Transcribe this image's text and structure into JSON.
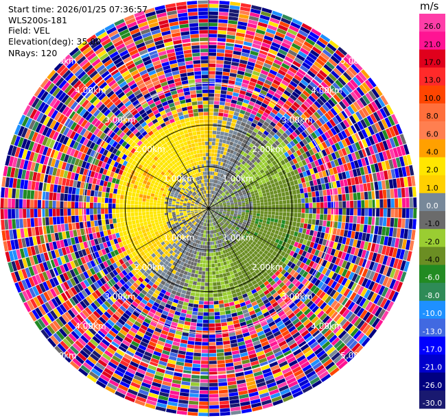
{
  "info": {
    "start_time": "Start time: 2026/01/25 07:36:57",
    "station": "WLS200s-181",
    "field": "Field: VEL",
    "elevation": "Elevation(deg): 35.00",
    "nrays": "NRays: 120"
  },
  "chart_data": {
    "type": "heatmap",
    "projection": "polar-ppi",
    "field": "VEL",
    "units": "m/s",
    "rays": 120,
    "max_range_km": 5.0,
    "range_rings_km": [
      1.0,
      2.0,
      3.0,
      4.0,
      5.0
    ],
    "ring_labels": [
      "1.00km",
      "2.00km",
      "3.00km",
      "4.00km",
      "5.00km"
    ],
    "colorbar": {
      "unit": "m/s",
      "ticks": [
        "26.0",
        "21.0",
        "17.0",
        "13.0",
        "10.0",
        "8.0",
        "6.0",
        "4.0",
        "2.0",
        "1.0",
        "0.0",
        "-1.0",
        "-2.0",
        "-4.0",
        "-6.0",
        "-8.0",
        "-10.0",
        "-13.0",
        "-17.0",
        "-21.0",
        "-26.0",
        "-30.0"
      ],
      "bins": [
        {
          "low": 26,
          "high": 30,
          "color": "#ff3da8"
        },
        {
          "low": 21,
          "high": 26,
          "color": "#ff1493"
        },
        {
          "low": 17,
          "high": 21,
          "color": "#e0001c"
        },
        {
          "low": 13,
          "high": 17,
          "color": "#ff2a2a"
        },
        {
          "low": 10,
          "high": 13,
          "color": "#ff4500"
        },
        {
          "low": 8,
          "high": 10,
          "color": "#ff6f3b"
        },
        {
          "low": 6,
          "high": 8,
          "color": "#ff7f50"
        },
        {
          "low": 4,
          "high": 6,
          "color": "#ffa000"
        },
        {
          "low": 2,
          "high": 4,
          "color": "#ffe600"
        },
        {
          "low": 1,
          "high": 2,
          "color": "#ffd000"
        },
        {
          "low": 0,
          "high": 1,
          "color": "#778899"
        },
        {
          "low": -1,
          "high": 0,
          "color": "#6b6b6b"
        },
        {
          "low": -2,
          "high": -1,
          "color": "#9acd32"
        },
        {
          "low": -4,
          "high": -2,
          "color": "#6b8e23"
        },
        {
          "low": -6,
          "high": -4,
          "color": "#228b22"
        },
        {
          "low": -8,
          "high": -6,
          "color": "#2e8b57"
        },
        {
          "low": -10,
          "high": -8,
          "color": "#1e90ff"
        },
        {
          "low": -13,
          "high": -10,
          "color": "#4169e1"
        },
        {
          "low": -17,
          "high": -13,
          "color": "#0000ff"
        },
        {
          "low": -21,
          "high": -17,
          "color": "#0000cd"
        },
        {
          "low": -26,
          "high": -21,
          "color": "#000080"
        },
        {
          "low": -30,
          "high": -26,
          "color": "#191970"
        }
      ]
    }
  }
}
